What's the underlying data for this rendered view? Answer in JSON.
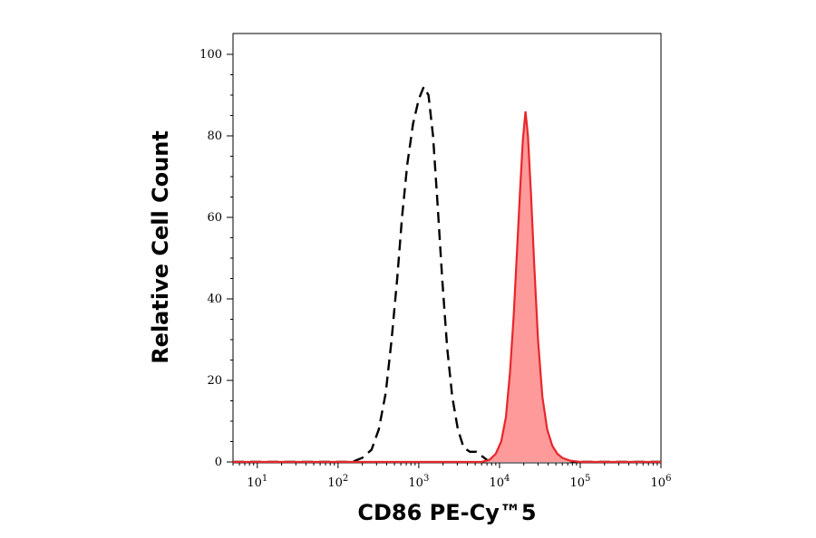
{
  "chart_data": {
    "type": "area",
    "title": "",
    "xlabel": "CD86 PE-Cy™5",
    "ylabel": "Relative Cell Count",
    "x_scale": "log",
    "xlim": [
      5,
      1000000
    ],
    "ylim": [
      0,
      105
    ],
    "x_ticks": [
      {
        "base": "10",
        "exp": "1",
        "value": 10
      },
      {
        "base": "10",
        "exp": "2",
        "value": 100
      },
      {
        "base": "10",
        "exp": "3",
        "value": 1000
      },
      {
        "base": "10",
        "exp": "4",
        "value": 10000
      },
      {
        "base": "10",
        "exp": "5",
        "value": 100000
      },
      {
        "base": "10",
        "exp": "6",
        "value": 1000000
      }
    ],
    "y_ticks": [
      "0",
      "20",
      "40",
      "60",
      "80",
      "100"
    ],
    "grid": false,
    "legend": "none",
    "series": [
      {
        "style": "dashed-outline",
        "color": "#000000",
        "points": [
          [
            5,
            0
          ],
          [
            150,
            0
          ],
          [
            200,
            1
          ],
          [
            260,
            3
          ],
          [
            320,
            8
          ],
          [
            390,
            17
          ],
          [
            460,
            30
          ],
          [
            540,
            45
          ],
          [
            620,
            60
          ],
          [
            720,
            73
          ],
          [
            850,
            83
          ],
          [
            1000,
            89
          ],
          [
            1150,
            92
          ],
          [
            1320,
            90
          ],
          [
            1500,
            80
          ],
          [
            1700,
            64
          ],
          [
            1950,
            45
          ],
          [
            2250,
            28
          ],
          [
            2600,
            16
          ],
          [
            3050,
            8
          ],
          [
            3600,
            3.5
          ],
          [
            4300,
            2.5
          ],
          [
            5200,
            2.5
          ],
          [
            6000,
            1.5
          ],
          [
            7000,
            0.5
          ],
          [
            9000,
            0.3
          ],
          [
            12000,
            0.8
          ],
          [
            15000,
            0.5
          ],
          [
            20000,
            0.8
          ],
          [
            26000,
            1.2
          ],
          [
            32000,
            1.5
          ],
          [
            40000,
            0.8
          ],
          [
            50000,
            0.5
          ],
          [
            60000,
            0.8
          ],
          [
            70000,
            0.3
          ],
          [
            90000,
            0
          ],
          [
            1000000,
            0
          ]
        ]
      },
      {
        "style": "filled",
        "color": "#e8262a",
        "fill": "#ff9a9a",
        "points": [
          [
            5,
            0
          ],
          [
            6000,
            0
          ],
          [
            7500,
            0.5
          ],
          [
            9000,
            2
          ],
          [
            10500,
            5
          ],
          [
            12000,
            11
          ],
          [
            13500,
            22
          ],
          [
            15000,
            36
          ],
          [
            16500,
            52
          ],
          [
            18000,
            67
          ],
          [
            19500,
            79
          ],
          [
            21000,
            86
          ],
          [
            22500,
            80
          ],
          [
            24500,
            66
          ],
          [
            27000,
            48
          ],
          [
            30000,
            30
          ],
          [
            34000,
            16
          ],
          [
            39000,
            8
          ],
          [
            45000,
            4
          ],
          [
            52000,
            2
          ],
          [
            60000,
            1
          ],
          [
            75000,
            0.3
          ],
          [
            100000,
            0
          ],
          [
            1000000,
            0
          ]
        ]
      }
    ]
  }
}
